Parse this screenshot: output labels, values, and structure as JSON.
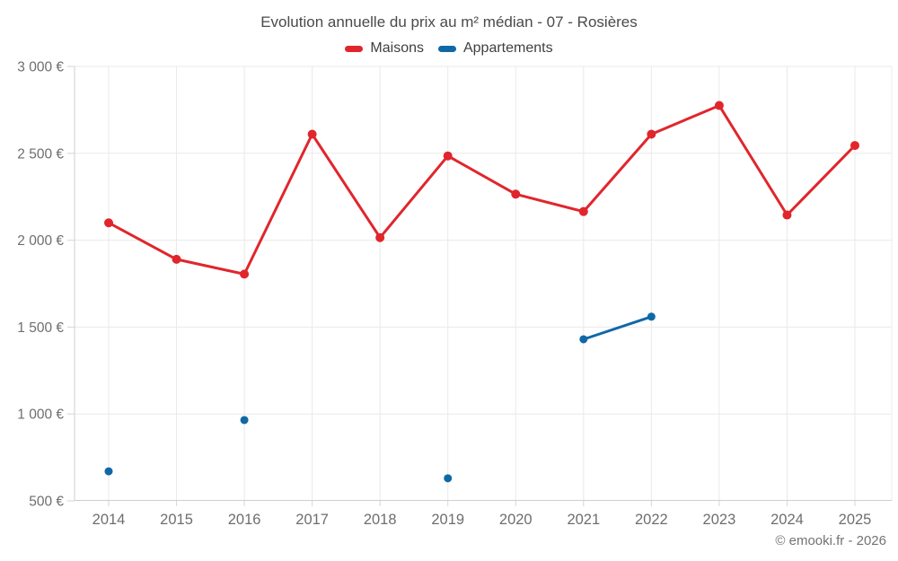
{
  "title": "Evolution annuelle du prix au m² médian - 07 - Rosières",
  "footer": "© emooki.fr - 2026",
  "colors": {
    "maisons": "#e0262c",
    "appartements": "#1168a6",
    "gridline": "#e9e9e9",
    "axis": "#cfcfcf",
    "tick": "#d6d6d6",
    "axis_label": "#6e6e6e",
    "title_text": "#4a4a4a"
  },
  "chart_data": {
    "type": "line",
    "x": [
      2014,
      2015,
      2016,
      2017,
      2018,
      2019,
      2020,
      2021,
      2022,
      2023,
      2024,
      2025
    ],
    "series": [
      {
        "name": "Maisons",
        "color": "#e0262c",
        "values": [
          2100,
          1890,
          1805,
          2610,
          2015,
          2485,
          2265,
          2165,
          2610,
          2775,
          2145,
          2545
        ]
      },
      {
        "name": "Appartements",
        "color": "#1168a6",
        "values": [
          670,
          null,
          965,
          null,
          null,
          630,
          null,
          1430,
          1560,
          null,
          null,
          null
        ]
      }
    ],
    "title": "Evolution annuelle du prix au m² médian - 07 - Rosières",
    "xlabel": "",
    "ylabel": "",
    "ylim": [
      500,
      3000
    ],
    "yticks": [
      500,
      1000,
      1500,
      2000,
      2500,
      3000
    ],
    "ytick_labels": [
      "500 €",
      "1 000 €",
      "1 500 €",
      "2 000 €",
      "2 500 €",
      "3 000 €"
    ],
    "grid": true,
    "legend_position": "top"
  }
}
